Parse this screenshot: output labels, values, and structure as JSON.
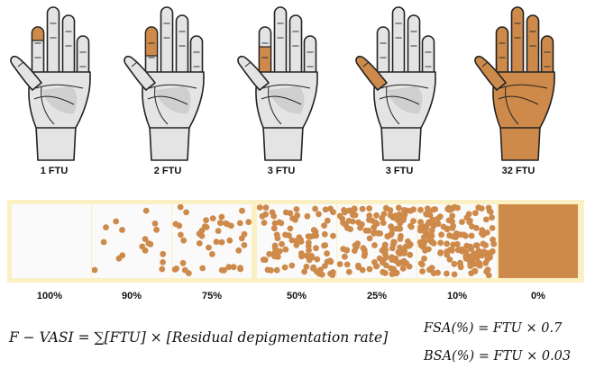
{
  "colors": {
    "skin_gray": "#e4e4e4",
    "palm_shade": "#cfcfcf",
    "pigment": "#cd8a4a",
    "outline": "#222222",
    "band": "#fbf0c4",
    "swatch_bg": "#fafafa"
  },
  "hands": [
    {
      "label": "1 FTU",
      "highlight": "index-tip"
    },
    {
      "label": "2 FTU",
      "highlight": "index-finger"
    },
    {
      "label": "3 FTU",
      "highlight": "index-finger-base"
    },
    {
      "label": "3 FTU",
      "highlight": "thumb"
    },
    {
      "label": "32 FTU",
      "highlight": "whole-hand"
    }
  ],
  "swatches": [
    {
      "label": "100%",
      "depigmentation": 1.0
    },
    {
      "label": "90%",
      "depigmentation": 0.9
    },
    {
      "label": "75%",
      "depigmentation": 0.75
    },
    {
      "label": "50%",
      "depigmentation": 0.5
    },
    {
      "label": "25%",
      "depigmentation": 0.25
    },
    {
      "label": "10%",
      "depigmentation": 0.1
    },
    {
      "label": "0%",
      "depigmentation": 0.0
    }
  ],
  "formulas": {
    "fvasi": "F − VASI = ∑[FTU] × [Residual depigmentation rate]",
    "fsa": "FSA(%) = FTU × 0.7",
    "bsa": "BSA(%) = FTU × 0.03"
  }
}
